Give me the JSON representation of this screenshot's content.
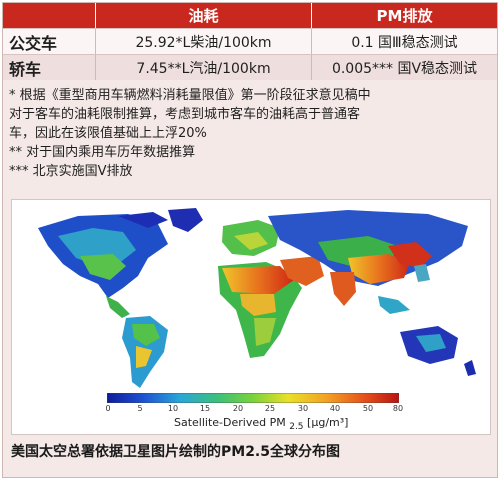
{
  "table": {
    "header": {
      "col1": "油耗",
      "col2": "PM排放"
    },
    "rows": [
      {
        "vehicle": "公交车",
        "fuel": "25.92*L柴油/100km",
        "pm": "0.1  国Ⅲ稳态测试"
      },
      {
        "vehicle": "轿车",
        "fuel": "7.45**L汽油/100km",
        "pm": "0.005***  国Ⅴ稳态测试"
      }
    ]
  },
  "notes": {
    "n1_line1": "* 根据《重型商用车辆燃料消耗量限值》第一阶段征求意见稿中",
    "n1_line2": "对于客车的油耗限制推算，考虑到城市客车的油耗高于普通客",
    "n1_line3": "车，因此在该限值基础上上浮20%",
    "n2": "** 对于国内乘用车历年数据推算",
    "n3": "*** 北京实施国Ⅴ排放"
  },
  "map": {
    "colorbar_ticks": [
      "0",
      "5",
      "10",
      "15",
      "20",
      "25",
      "30",
      "40",
      "50",
      "80"
    ],
    "colorbar_title": "Satellite-Derived PM",
    "colorbar_sub": "2.5",
    "colorbar_unit": "[μg/m³]",
    "colors": {
      "low": "#1d2bb0",
      "mid": "#47c44b",
      "high": "#f0e22a",
      "peak": "#d62a18"
    }
  },
  "caption": "美国太空总署依据卫星图片绘制的PM2.5全球分布图"
}
